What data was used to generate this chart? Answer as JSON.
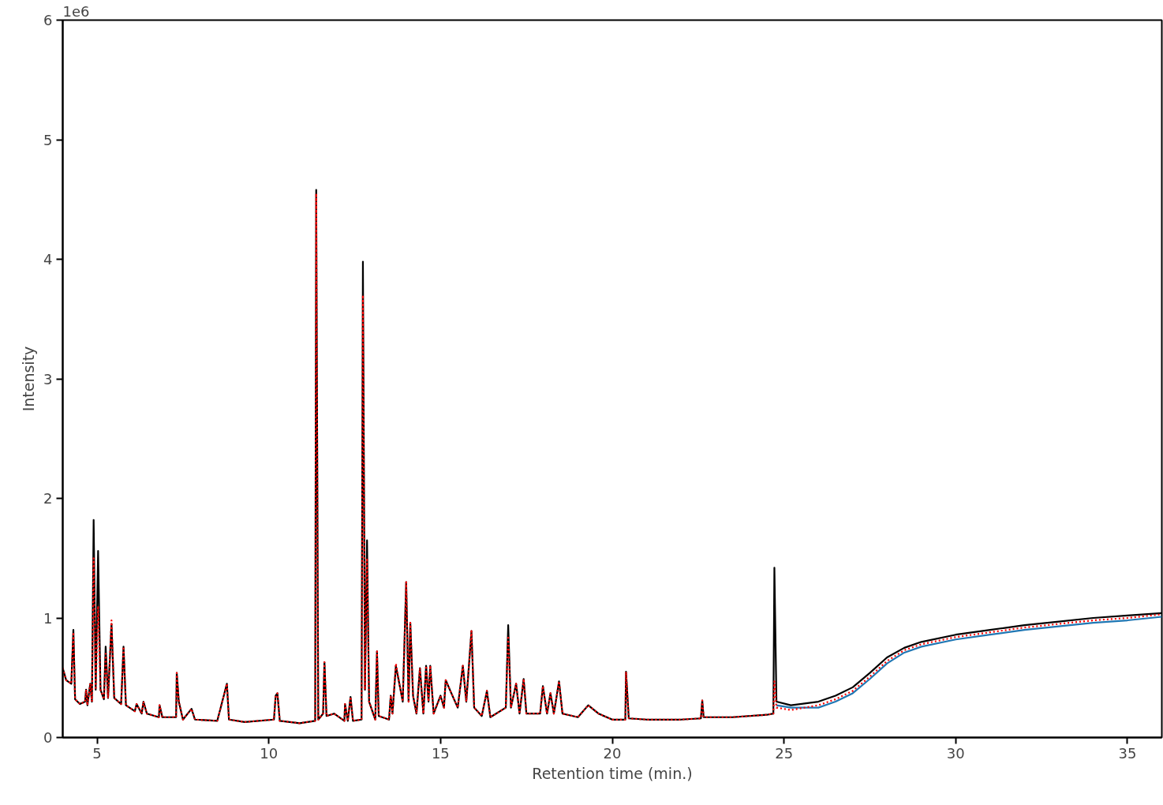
{
  "chart_data": {
    "type": "line",
    "xlabel": "Retention time (min.)",
    "ylabel": "Intensity",
    "annotations": [
      "1e6"
    ],
    "xlim": [
      4,
      36
    ],
    "xticks": [
      5,
      10,
      15,
      20,
      25,
      30,
      35
    ],
    "ylim": [
      0,
      6
    ],
    "yticks": [
      0,
      1,
      2,
      3,
      4,
      5,
      6
    ],
    "grid": false,
    "x": [
      4.0,
      4.1,
      4.25,
      4.31,
      4.36,
      4.5,
      4.65,
      4.68,
      4.72,
      4.8,
      4.85,
      4.9,
      4.96,
      5.03,
      5.1,
      5.2,
      5.25,
      5.32,
      5.42,
      5.5,
      5.7,
      5.77,
      5.84,
      6.1,
      6.15,
      6.3,
      6.35,
      6.45,
      6.8,
      6.82,
      6.9,
      7.3,
      7.32,
      7.38,
      7.5,
      7.75,
      7.85,
      8.5,
      8.78,
      8.84,
      9.3,
      10.15,
      10.2,
      10.25,
      10.32,
      10.9,
      11.35,
      11.38,
      11.44,
      11.58,
      11.62,
      11.68,
      11.9,
      12.2,
      12.22,
      12.3,
      12.38,
      12.45,
      12.7,
      12.74,
      12.8,
      12.86,
      12.92,
      13.1,
      13.15,
      13.2,
      13.5,
      13.55,
      13.6,
      13.7,
      13.8,
      13.9,
      14.0,
      14.07,
      14.12,
      14.2,
      14.3,
      14.4,
      14.5,
      14.58,
      14.65,
      14.7,
      14.8,
      15.0,
      15.1,
      15.15,
      15.3,
      15.5,
      15.65,
      15.75,
      15.9,
      15.98,
      16.2,
      16.35,
      16.45,
      16.9,
      16.97,
      17.05,
      17.2,
      17.3,
      17.42,
      17.5,
      17.9,
      17.98,
      18.1,
      18.2,
      18.3,
      18.45,
      18.55,
      19.0,
      19.3,
      19.6,
      20.0,
      20.38,
      20.4,
      20.48,
      21.0,
      22.0,
      22.58,
      22.62,
      22.66,
      23.5,
      24.5,
      24.69,
      24.72,
      24.78,
      25.2,
      26.0,
      26.5,
      27.0,
      27.5,
      28.0,
      28.5,
      29.0,
      30.0,
      31.0,
      32.0,
      33.0,
      34.0,
      35.0,
      36.0
    ],
    "series": [
      {
        "color": "#1f77b4",
        "line_style": "solid",
        "x": [
          24.78,
          25.2,
          26.0,
          26.5,
          27.0,
          27.5,
          28.0,
          28.5,
          29.0,
          30.0,
          31.0,
          32.0,
          33.0,
          34.0,
          35.0,
          36.0
        ],
        "values": [
          0.27,
          0.25,
          0.25,
          0.3,
          0.37,
          0.49,
          0.62,
          0.71,
          0.76,
          0.82,
          0.86,
          0.9,
          0.93,
          0.96,
          0.98,
          1.01
        ]
      },
      {
        "color": "#000000",
        "line_style": "solid",
        "values": [
          0.58,
          0.48,
          0.45,
          0.9,
          0.32,
          0.28,
          0.3,
          0.4,
          0.27,
          0.45,
          0.3,
          1.82,
          0.4,
          1.56,
          0.4,
          0.32,
          0.76,
          0.33,
          0.95,
          0.33,
          0.28,
          0.76,
          0.27,
          0.22,
          0.28,
          0.2,
          0.3,
          0.2,
          0.17,
          0.27,
          0.17,
          0.17,
          0.54,
          0.3,
          0.15,
          0.24,
          0.15,
          0.14,
          0.45,
          0.15,
          0.13,
          0.15,
          0.35,
          0.37,
          0.14,
          0.12,
          0.14,
          4.58,
          0.15,
          0.2,
          0.63,
          0.18,
          0.2,
          0.14,
          0.28,
          0.14,
          0.34,
          0.14,
          0.15,
          3.98,
          0.4,
          1.65,
          0.3,
          0.15,
          0.72,
          0.18,
          0.15,
          0.35,
          0.2,
          0.6,
          0.45,
          0.3,
          1.3,
          0.3,
          0.96,
          0.35,
          0.2,
          0.58,
          0.2,
          0.6,
          0.3,
          0.6,
          0.2,
          0.35,
          0.25,
          0.48,
          0.38,
          0.25,
          0.6,
          0.3,
          0.89,
          0.25,
          0.18,
          0.39,
          0.17,
          0.25,
          0.94,
          0.25,
          0.45,
          0.2,
          0.49,
          0.2,
          0.2,
          0.43,
          0.2,
          0.37,
          0.2,
          0.47,
          0.2,
          0.17,
          0.27,
          0.2,
          0.15,
          0.15,
          0.55,
          0.16,
          0.15,
          0.15,
          0.16,
          0.31,
          0.17,
          0.17,
          0.19,
          0.2,
          1.42,
          0.3,
          0.27,
          0.3,
          0.35,
          0.42,
          0.54,
          0.67,
          0.75,
          0.8,
          0.86,
          0.9,
          0.94,
          0.97,
          1.0,
          1.02,
          1.04
        ]
      },
      {
        "color": "#ff0000",
        "line_style": "dotted",
        "values": [
          0.58,
          0.48,
          0.45,
          0.88,
          0.32,
          0.28,
          0.3,
          0.4,
          0.27,
          0.45,
          0.3,
          1.5,
          0.4,
          1.1,
          0.4,
          0.32,
          0.7,
          0.33,
          0.98,
          0.33,
          0.28,
          0.76,
          0.27,
          0.22,
          0.28,
          0.2,
          0.3,
          0.2,
          0.17,
          0.27,
          0.17,
          0.17,
          0.54,
          0.3,
          0.15,
          0.24,
          0.15,
          0.14,
          0.45,
          0.15,
          0.13,
          0.15,
          0.35,
          0.37,
          0.14,
          0.12,
          0.14,
          4.55,
          0.15,
          0.2,
          0.63,
          0.18,
          0.2,
          0.14,
          0.28,
          0.14,
          0.34,
          0.14,
          0.15,
          3.7,
          0.4,
          1.5,
          0.3,
          0.15,
          0.72,
          0.18,
          0.15,
          0.35,
          0.2,
          0.62,
          0.45,
          0.3,
          1.3,
          0.3,
          0.96,
          0.35,
          0.2,
          0.58,
          0.2,
          0.6,
          0.3,
          0.6,
          0.2,
          0.35,
          0.25,
          0.48,
          0.38,
          0.25,
          0.6,
          0.3,
          0.89,
          0.25,
          0.18,
          0.39,
          0.17,
          0.25,
          0.85,
          0.25,
          0.45,
          0.2,
          0.49,
          0.2,
          0.2,
          0.43,
          0.2,
          0.37,
          0.2,
          0.47,
          0.2,
          0.17,
          0.27,
          0.2,
          0.15,
          0.15,
          0.55,
          0.16,
          0.15,
          0.15,
          0.16,
          0.31,
          0.17,
          0.17,
          0.19,
          0.2,
          0.47,
          0.25,
          0.23,
          0.27,
          0.32,
          0.39,
          0.51,
          0.64,
          0.73,
          0.78,
          0.84,
          0.88,
          0.92,
          0.95,
          0.98,
          1.0,
          1.03
        ]
      }
    ]
  }
}
